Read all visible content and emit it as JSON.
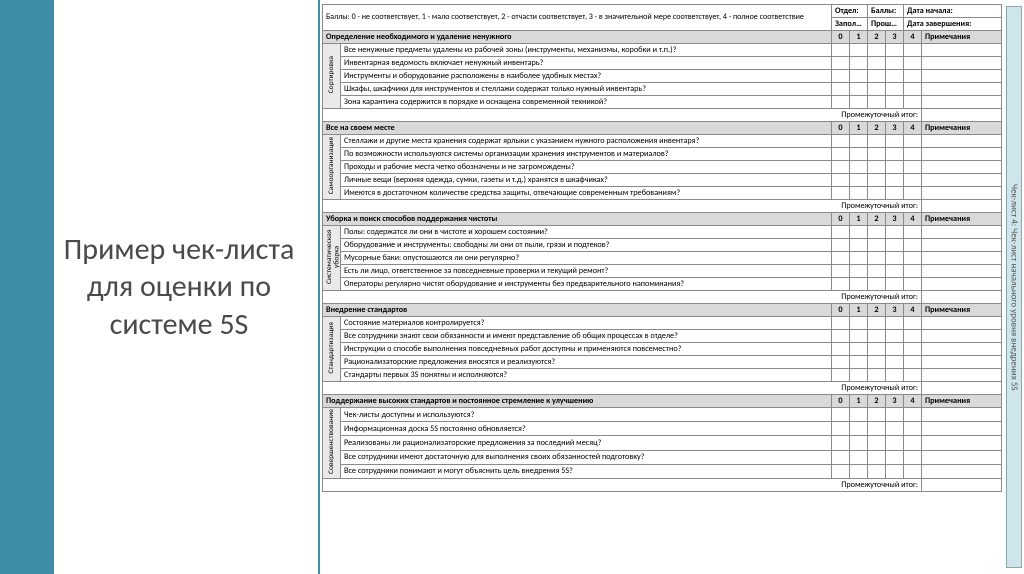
{
  "title": "Пример чек-листа для оценки по системе 5S",
  "side_tab": "Чек-лист 4: Чек-лист начального уровня внедрения 5S",
  "header": {
    "scoring_legend": "Баллы: 0 - не соответствует, 1 - мало соответствует, 2 - отчасти соответствует, 3 - в значительной мере соответствует, 4 - полное соответствие",
    "dept_label": "Отдел:",
    "score_label": "Баллы:",
    "start_date_label": "Дата начала:",
    "filled_label": "Заполнил:",
    "prev_label": "Прошлый рез-т:",
    "end_date_label": "Дата завершения:",
    "notes_label": "Примечания"
  },
  "score_cols": [
    "0",
    "1",
    "2",
    "3",
    "4"
  ],
  "subtotal_label": "Промежуточный итог:",
  "sections": [
    {
      "vert": "Сортировка",
      "title": "Определение необходимого и удаление ненужного",
      "items": [
        "Все ненужные предметы удалены из рабочей зоны (инструменты, механизмы, коробки и т.п.)?",
        "Инвентарная ведомость включает ненужный инвентарь?",
        "Инструменты и оборудование расположены в наиболее удобных местах?",
        "Шкафы, шкафчики для инструментов и стеллажи содержат только нужный инвентарь?",
        "Зона карантина содержится в порядке и оснащена современной техникой?"
      ]
    },
    {
      "vert": "Самоорганизация",
      "title": "Все на своем месте",
      "items": [
        "Стеллажи и другие места хранения содержат ярлыки с указанием нужного расположения инвентаря?",
        "По возможности используются системы организации хранения инструментов и материалов?",
        "Проходы и рабочие места четко обозначены и не загромождены?",
        "Личные вещи (верхняя одежда, сумки, газеты и т.д.) хранятся в шкафчиках?",
        "Имеются в достаточном количестве средства защиты, отвечающие современным требованиям?"
      ]
    },
    {
      "vert": "Систематическая уборка",
      "title": "Уборка и поиск способов поддержания чистоты",
      "items": [
        "Полы: содержатся ли они в чистоте и хорошем состоянии?",
        "Оборудование и инструменты: свободны ли они от пыли, грязи и подтеков?",
        "Мусорные баки: опустошаются ли они регулярно?",
        "Есть ли лицо, ответственное за повседневные проверки и текущий ремонт?",
        "Операторы регулярно чистят оборудование и инструменты без предварительного напоминания?"
      ]
    },
    {
      "vert": "Стандартизация",
      "title": "Внедрение стандартов",
      "items": [
        "Состояние материалов контролируется?",
        "Все сотрудники знают свои обязанности и имеют представление об общих процессах в отделе?",
        "Инструкции о способе выполнения повседневных работ доступны и применяются повсеместно?",
        "Рационализаторские предложения вносятся и реализуются?",
        "Стандарты первых 3S понятны и исполняются?"
      ]
    },
    {
      "vert": "Совершенствование",
      "title": "Поддержание высоких стандартов и постоянное стремление к улучшению",
      "items": [
        "Чек-листы доступны и используются?",
        "Информационная доска 5S постоянно обновляется?",
        "Реализованы ли рационализаторские предложения за последний месяц?",
        "Все сотрудники имеют достаточную для выполнения своих обязанностей подготовку?",
        "Все сотрудники понимают и могут объяснить цель внедрения 5S?"
      ]
    }
  ],
  "colors": {
    "accent": "#3e8ea8",
    "section_bg": "#d9d9d9",
    "side_tab_bg": "#cfe5ec",
    "border": "#8a8a8a"
  }
}
